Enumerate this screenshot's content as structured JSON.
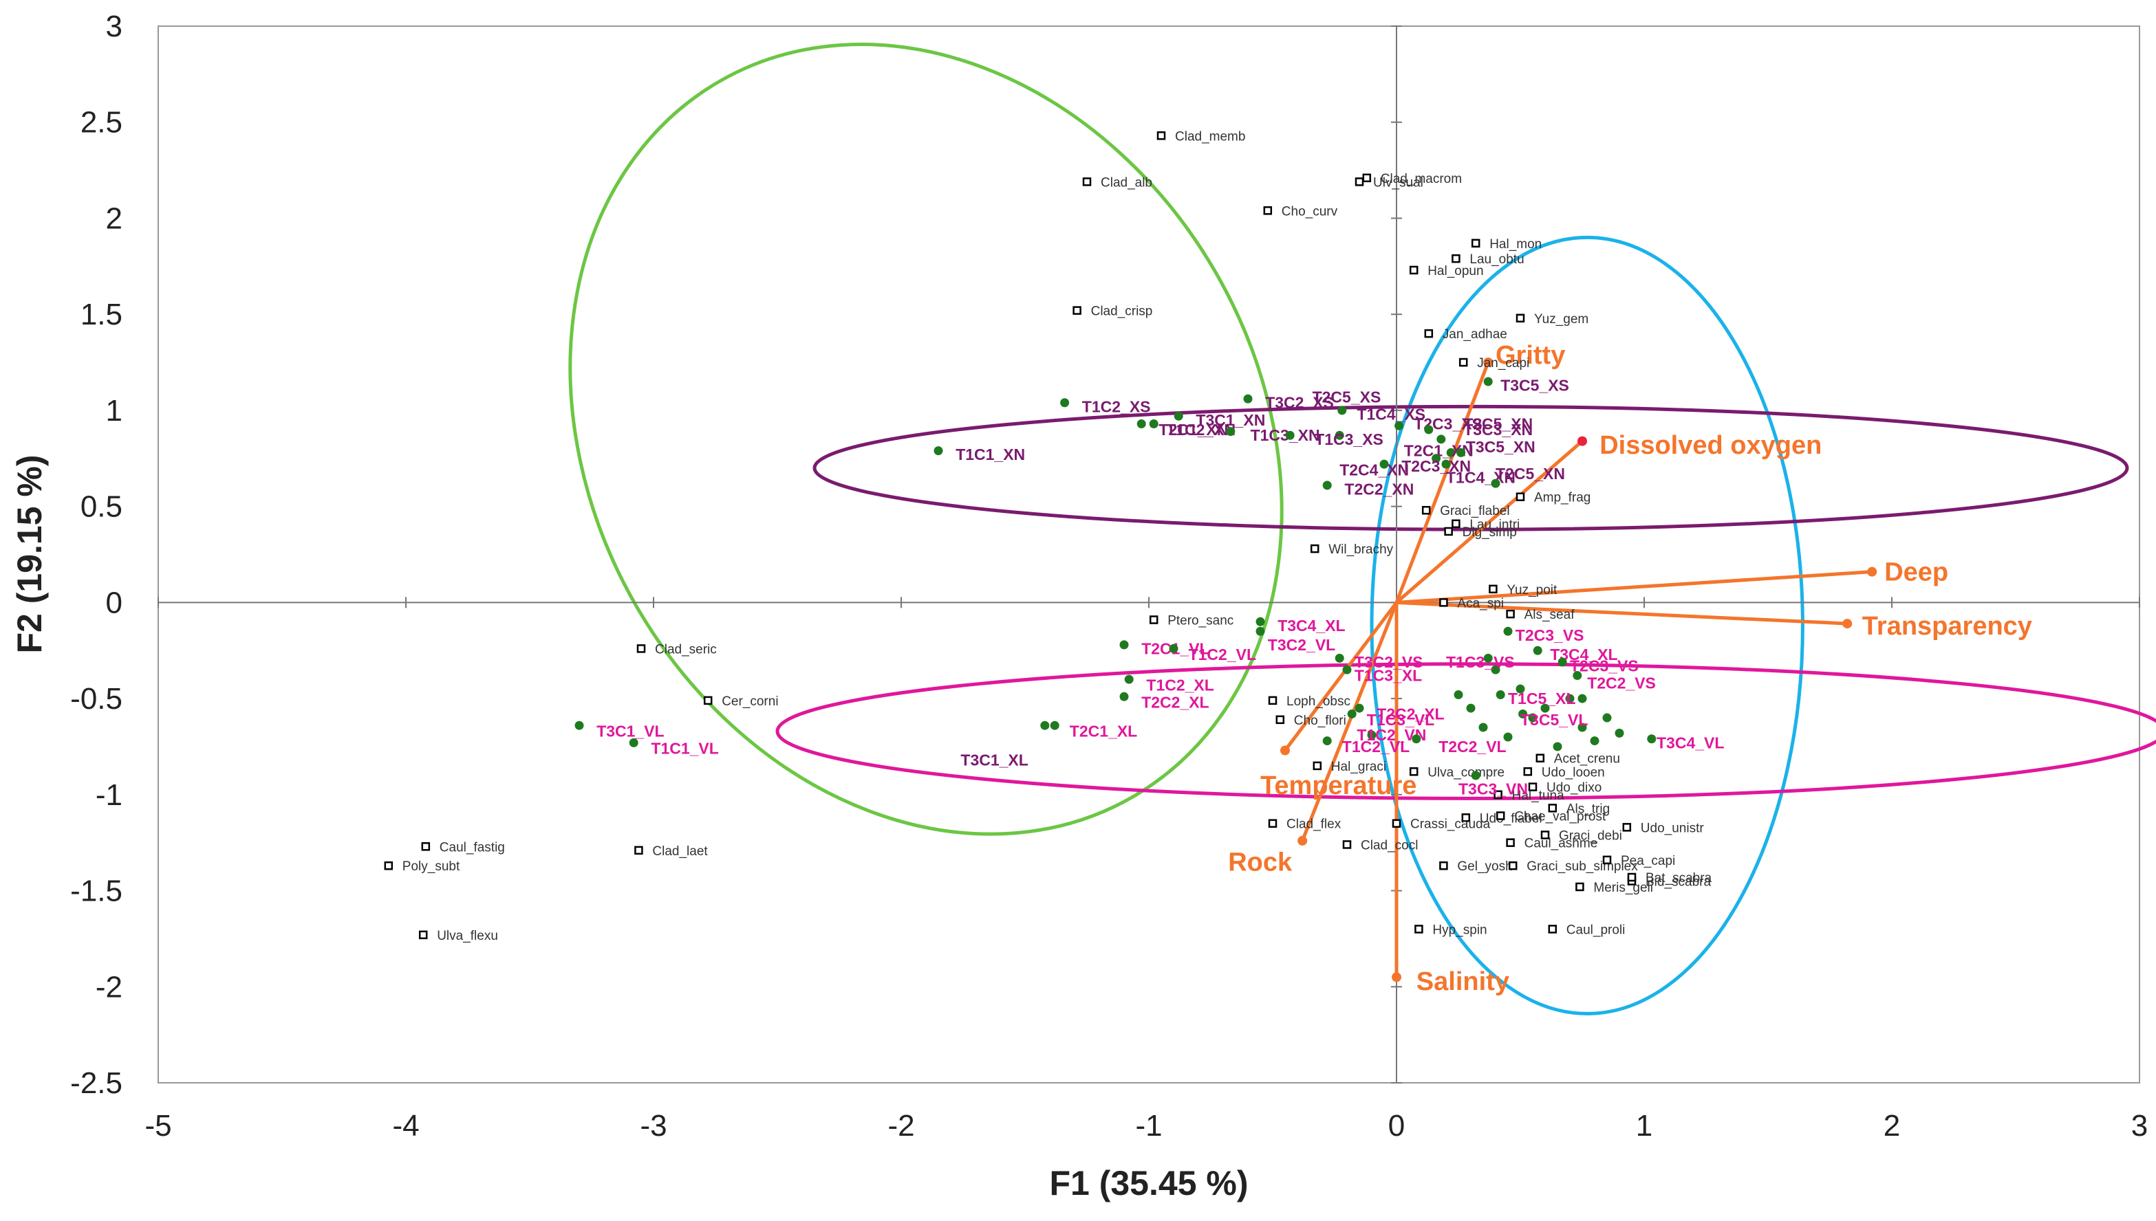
{
  "chart_data": {
    "type": "scatter",
    "title": "",
    "xlabel": "F1 (35.45 %)",
    "ylabel": "F2 (19.15 %)",
    "xlim": [
      -5,
      3
    ],
    "ylim": [
      -2.5,
      3
    ],
    "xticks": [
      -5,
      -4,
      -3,
      -2,
      -1,
      0,
      1,
      2,
      3
    ],
    "yticks": [
      3,
      2.5,
      2,
      1.5,
      1,
      0.5,
      0,
      -0.5,
      -1,
      -1.5,
      -2,
      -2.5
    ],
    "tick_labels_x": [
      "-5",
      "-4",
      "-3",
      "-2",
      "-1",
      "0",
      "1",
      "2",
      "3"
    ],
    "tick_labels_y": [
      "3",
      "2.5",
      "2",
      "1.5",
      "1",
      "0.5",
      "0",
      "-0.5",
      "-1",
      "-1.5",
      "-2",
      "-2.5"
    ],
    "colors": {
      "species": "#000000",
      "sites": "#1f7a1f",
      "vectors": "#f4752c",
      "xn_label": "#7a1b6e",
      "vl_label": "#e0179c",
      "ellipse_green": "#6cc644",
      "ellipse_blue": "#1ab2ea",
      "ellipse_purple": "#7a1b6e",
      "ellipse_pink": "#e0179c"
    },
    "ellipses": [
      {
        "name": "green",
        "cx": -1.9,
        "cy": 0.85,
        "rx": 1.35,
        "ry": 2.15,
        "rotate": 30,
        "color": "#6cc644"
      },
      {
        "name": "blue",
        "cx": 0.77,
        "cy": -0.12,
        "rx": 0.87,
        "ry": 2.02,
        "rotate": 0,
        "color": "#1ab2ea"
      },
      {
        "name": "purple",
        "cx": 0.3,
        "cy": 0.7,
        "rx": 2.65,
        "ry": 0.32,
        "rotate": 0,
        "color": "#7a1b6e"
      },
      {
        "name": "pink",
        "cx": 0.3,
        "cy": -0.67,
        "rx": 2.8,
        "ry": 0.35,
        "rotate": 0,
        "color": "#e0179c"
      }
    ],
    "variables": [
      {
        "name": "Gritty",
        "label": "Gritty",
        "x": 0.37,
        "y": 1.25,
        "lx": 0.4,
        "ly": 1.29
      },
      {
        "name": "Dissolved oxygen",
        "label": "Dissolved oxygen",
        "x": 0.75,
        "y": 0.84,
        "lx": 0.82,
        "ly": 0.82
      },
      {
        "name": "Deep",
        "label": "Deep",
        "x": 1.92,
        "y": 0.16,
        "lx": 1.97,
        "ly": 0.16
      },
      {
        "name": "Transparency",
        "label": "Transparency",
        "x": 1.82,
        "y": -0.11,
        "lx": 1.88,
        "ly": -0.12
      },
      {
        "name": "Temperature",
        "label": "Temperature",
        "x": -0.45,
        "y": -0.77,
        "lx": -0.55,
        "ly": -0.95
      },
      {
        "name": "Rock",
        "label": "Rock",
        "x": -0.38,
        "y": -1.24,
        "lx": -0.68,
        "ly": -1.35
      },
      {
        "name": "Salinity",
        "label": "Salinity",
        "x": 0.0,
        "y": -1.95,
        "lx": 0.08,
        "ly": -1.97
      }
    ],
    "species": [
      {
        "label": "Clad_memb",
        "x": -0.95,
        "y": 2.43
      },
      {
        "label": "Clad_alb",
        "x": -1.25,
        "y": 2.19
      },
      {
        "label": "Cho_curv",
        "x": -0.52,
        "y": 2.04
      },
      {
        "label": "Clad_macrom",
        "x": -0.12,
        "y": 2.21
      },
      {
        "label": "Ulv_sual",
        "x": -0.15,
        "y": 2.19
      },
      {
        "label": "Hal_mon",
        "x": 0.32,
        "y": 1.87
      },
      {
        "label": "Lau_obtu",
        "x": 0.24,
        "y": 1.79
      },
      {
        "label": "Hal_opun",
        "x": 0.07,
        "y": 1.73
      },
      {
        "label": "Clad_crisp",
        "x": -1.29,
        "y": 1.52
      },
      {
        "label": "Yuz_gem",
        "x": 0.5,
        "y": 1.48
      },
      {
        "label": "Jan_adhae",
        "x": 0.13,
        "y": 1.4
      },
      {
        "label": "Jan_capi",
        "x": 0.27,
        "y": 1.25
      },
      {
        "label": "Amp_frag",
        "x": 0.5,
        "y": 0.55
      },
      {
        "label": "Graci_flabel",
        "x": 0.12,
        "y": 0.48
      },
      {
        "label": "Lau_intri",
        "x": 0.24,
        "y": 0.41
      },
      {
        "label": "Dig_simp",
        "x": 0.21,
        "y": 0.37
      },
      {
        "label": "Wil_brachy",
        "x": -0.33,
        "y": 0.28
      },
      {
        "label": "Yuz_poit",
        "x": 0.39,
        "y": 0.07
      },
      {
        "label": "Aca_spi",
        "x": 0.19,
        "y": 0.0
      },
      {
        "label": "Als_seaf",
        "x": 0.46,
        "y": -0.06
      },
      {
        "label": "Ptero_sanc",
        "x": -0.98,
        "y": -0.09
      },
      {
        "label": "Clad_seric",
        "x": -3.05,
        "y": -0.24
      },
      {
        "label": "Cer_corni",
        "x": -2.78,
        "y": -0.51
      },
      {
        "label": "Loph_obsc",
        "x": -0.5,
        "y": -0.51
      },
      {
        "label": "Cho_flori",
        "x": -0.47,
        "y": -0.61
      },
      {
        "label": "Hal_graci",
        "x": -0.32,
        "y": -0.85
      },
      {
        "label": "Ulva_compre",
        "x": 0.07,
        "y": -0.88
      },
      {
        "label": "Udo_looen",
        "x": 0.53,
        "y": -0.88
      },
      {
        "label": "Udo_dixo",
        "x": 0.55,
        "y": -0.96
      },
      {
        "label": "Acet_crenu",
        "x": 0.58,
        "y": -0.81
      },
      {
        "label": "Hal_tuna",
        "x": 0.41,
        "y": -1.0
      },
      {
        "label": "Als_trig",
        "x": 0.63,
        "y": -1.07
      },
      {
        "label": "Udo_flabel",
        "x": 0.28,
        "y": -1.12
      },
      {
        "label": "Chae_val_prost",
        "x": 0.42,
        "y": -1.11
      },
      {
        "label": "Udo_unistr",
        "x": 0.93,
        "y": -1.17
      },
      {
        "label": "Clad_flex",
        "x": -0.5,
        "y": -1.15
      },
      {
        "label": "Crassi_cauda",
        "x": 0.0,
        "y": -1.15
      },
      {
        "label": "Caul_ashme",
        "x": 0.46,
        "y": -1.25
      },
      {
        "label": "Graci_debi",
        "x": 0.6,
        "y": -1.21
      },
      {
        "label": "Clad_cocl",
        "x": -0.2,
        "y": -1.26
      },
      {
        "label": "Gel_yosh",
        "x": 0.19,
        "y": -1.37
      },
      {
        "label": "Graci_sub_simplex",
        "x": 0.47,
        "y": -1.37
      },
      {
        "label": "Pea_capi",
        "x": 0.85,
        "y": -1.34
      },
      {
        "label": "Bid_scabra",
        "x": 0.95,
        "y": -1.45
      },
      {
        "label": "Bat_scabra",
        "x": 0.95,
        "y": -1.43
      },
      {
        "label": "Meris_geli",
        "x": 0.74,
        "y": -1.48
      },
      {
        "label": "Hyp_spin",
        "x": 0.09,
        "y": -1.7
      },
      {
        "label": "Caul_proli",
        "x": 0.63,
        "y": -1.7
      },
      {
        "label": "Caul_fastig",
        "x": -3.92,
        "y": -1.27
      },
      {
        "label": "Poly_subt",
        "x": -4.07,
        "y": -1.37
      },
      {
        "label": "Clad_laet",
        "x": -3.06,
        "y": -1.29
      },
      {
        "label": "Ulva_flexu",
        "x": -3.93,
        "y": -1.73
      }
    ],
    "sites_xn": [
      {
        "label": "T1C1_XN",
        "x": -1.85,
        "y": 0.79,
        "lx": -1.78,
        "ly": 0.77
      },
      {
        "label": "T1C2_XS",
        "x": -1.34,
        "y": 1.04,
        "lx": -1.27,
        "ly": 1.02
      },
      {
        "label": "T2C1_XN",
        "x": -1.03,
        "y": 0.93,
        "lx": -0.96,
        "ly": 0.9
      },
      {
        "label": "T1C2_XN",
        "x": -0.98,
        "y": 0.93,
        "lx": -0.93,
        "ly": 0.9
      },
      {
        "label": "T3C1_XN",
        "x": -0.88,
        "y": 0.97,
        "lx": -0.81,
        "ly": 0.95
      },
      {
        "label": "T1C3_XN",
        "x": -0.67,
        "y": 0.89,
        "lx": -0.59,
        "ly": 0.87
      },
      {
        "label": "T3C2_XS",
        "x": -0.6,
        "y": 1.06,
        "lx": -0.53,
        "ly": 1.04
      },
      {
        "label": "T2C5_XS",
        "x": -0.43,
        "y": 0.87,
        "lx": -0.34,
        "ly": 1.07
      },
      {
        "label": "T1C3_XS",
        "x": -0.23,
        "y": 0.87,
        "lx": -0.33,
        "ly": 0.85
      },
      {
        "label": "T1C4_XS",
        "x": -0.22,
        "y": 1.0,
        "lx": -0.16,
        "ly": 0.98
      },
      {
        "label": "T2C3_XS",
        "x": 0.01,
        "y": 0.92,
        "lx": 0.07,
        "ly": 0.93
      },
      {
        "label": "T2C5_XN",
        "x": 0.13,
        "y": 0.9,
        "lx": 0.27,
        "ly": 0.93
      },
      {
        "label": "T3C3_XN",
        "x": 0.18,
        "y": 0.85,
        "lx": 0.27,
        "ly": 0.9
      },
      {
        "label": "T2C1_XN",
        "x": 0.22,
        "y": 0.78,
        "lx": 0.03,
        "ly": 0.79
      },
      {
        "label": "T3C5_XN",
        "x": 0.26,
        "y": 0.78,
        "lx": 0.28,
        "ly": 0.81
      },
      {
        "label": "T2C3_XN",
        "x": 0.16,
        "y": 0.75,
        "lx": 0.02,
        "ly": 0.71
      },
      {
        "label": "T2C4_XN",
        "x": -0.05,
        "y": 0.72,
        "lx": -0.23,
        "ly": 0.69
      },
      {
        "label": "T3C5_XS",
        "x": 0.37,
        "y": 1.15,
        "lx": 0.42,
        "ly": 1.13
      },
      {
        "label": "T1C4_XN",
        "x": 0.2,
        "y": 0.72,
        "lx": 0.2,
        "ly": 0.65
      },
      {
        "label": "T2C5_XN",
        "x": 0.4,
        "y": 0.62,
        "lx": 0.4,
        "ly": 0.67
      },
      {
        "label": "T2C2_XN",
        "x": -0.28,
        "y": 0.61,
        "lx": -0.21,
        "ly": 0.59
      }
    ],
    "sites_vl": [
      {
        "label": "T3C1_VL",
        "x": -3.3,
        "y": -0.64,
        "lx": -3.23,
        "ly": -0.67
      },
      {
        "label": "T1C1_VL",
        "x": -3.08,
        "y": -0.73,
        "lx": -3.01,
        "ly": -0.76
      },
      {
        "label": "T2C1_XL",
        "x": -1.38,
        "y": -0.64,
        "lx": -1.32,
        "ly": -0.67
      },
      {
        "label": "T3C1_XL",
        "x": -1.42,
        "y": -0.64,
        "lx": -1.76,
        "ly": -0.82
      },
      {
        "label": "T2C1_VL",
        "x": -1.1,
        "y": -0.22,
        "lx": -1.03,
        "ly": -0.24
      },
      {
        "label": "T1C2_VL",
        "x": -0.9,
        "y": -0.24,
        "lx": -0.84,
        "ly": -0.27
      },
      {
        "label": "T1C2_XL",
        "x": -1.08,
        "y": -0.4,
        "lx": -1.01,
        "ly": -0.43
      },
      {
        "label": "T2C2_XL",
        "x": -1.1,
        "y": -0.49,
        "lx": -1.03,
        "ly": -0.52
      },
      {
        "label": "T3C4_XL",
        "x": -0.55,
        "y": -0.1,
        "lx": -0.48,
        "ly": -0.12
      },
      {
        "label": "T3C2_VL",
        "x": -0.55,
        "y": -0.15,
        "lx": -0.52,
        "ly": -0.22
      },
      {
        "label": "T3C2_VS",
        "x": -0.23,
        "y": -0.29,
        "lx": -0.17,
        "ly": -0.31
      },
      {
        "label": "T1C3_XL",
        "x": -0.2,
        "y": -0.35,
        "lx": -0.17,
        "ly": -0.38
      },
      {
        "label": "T1C3_VL",
        "x": -0.18,
        "y": -0.58,
        "lx": -0.12,
        "ly": -0.61
      },
      {
        "label": "T2C2_XL",
        "x": -0.15,
        "y": -0.55,
        "lx": -0.08,
        "ly": -0.58
      },
      {
        "label": "T1C2_VL",
        "x": -0.28,
        "y": -0.72,
        "lx": -0.22,
        "ly": -0.75
      },
      {
        "label": "T1C2_VN",
        "x": -0.1,
        "y": -0.69,
        "lx": -0.16,
        "ly": -0.69
      },
      {
        "label": "T2C2_VL",
        "x": 0.08,
        "y": -0.71,
        "lx": 0.17,
        "ly": -0.75
      },
      {
        "label": "T2C3_VS",
        "x": 0.45,
        "y": -0.15,
        "lx": 0.48,
        "ly": -0.17
      },
      {
        "label": "T3C4_XL",
        "x": 0.57,
        "y": -0.25,
        "lx": 0.62,
        "ly": -0.27
      },
      {
        "label": "T1C3_VS",
        "x": 0.37,
        "y": -0.29,
        "lx": 0.2,
        "ly": -0.31
      },
      {
        "label": "T2C3_VS",
        "x": 0.67,
        "y": -0.31,
        "lx": 0.7,
        "ly": -0.33
      },
      {
        "label": "T2C2_VS",
        "x": 0.73,
        "y": -0.38,
        "lx": 0.77,
        "ly": -0.42
      },
      {
        "label": "T1C5_XL",
        "x": 0.42,
        "y": -0.48,
        "lx": 0.45,
        "ly": -0.5
      },
      {
        "label": "T3C5_VL",
        "x": 0.51,
        "y": -0.58,
        "lx": 0.5,
        "ly": -0.61
      },
      {
        "label": "T3C4_VL",
        "x": 1.03,
        "y": -0.71,
        "lx": 1.05,
        "ly": -0.73
      },
      {
        "label": "T3C3_VN",
        "x": 0.32,
        "y": -0.9,
        "lx": 0.25,
        "ly": -0.97
      }
    ],
    "sites_green_extra": [
      {
        "x": 0.55,
        "y": -0.6
      },
      {
        "x": 0.6,
        "y": -0.55
      },
      {
        "x": 0.75,
        "y": -0.65
      },
      {
        "x": 0.8,
        "y": -0.72
      },
      {
        "x": 0.65,
        "y": -0.75
      },
      {
        "x": 0.5,
        "y": -0.45
      },
      {
        "x": 0.35,
        "y": -0.65
      },
      {
        "x": 0.45,
        "y": -0.7
      },
      {
        "x": 0.3,
        "y": -0.55
      },
      {
        "x": 0.85,
        "y": -0.6
      },
      {
        "x": 0.7,
        "y": -0.5
      },
      {
        "x": 0.4,
        "y": -0.35
      },
      {
        "x": 0.25,
        "y": -0.48
      },
      {
        "x": 0.75,
        "y": -0.5
      },
      {
        "x": 0.9,
        "y": -0.68
      }
    ]
  }
}
